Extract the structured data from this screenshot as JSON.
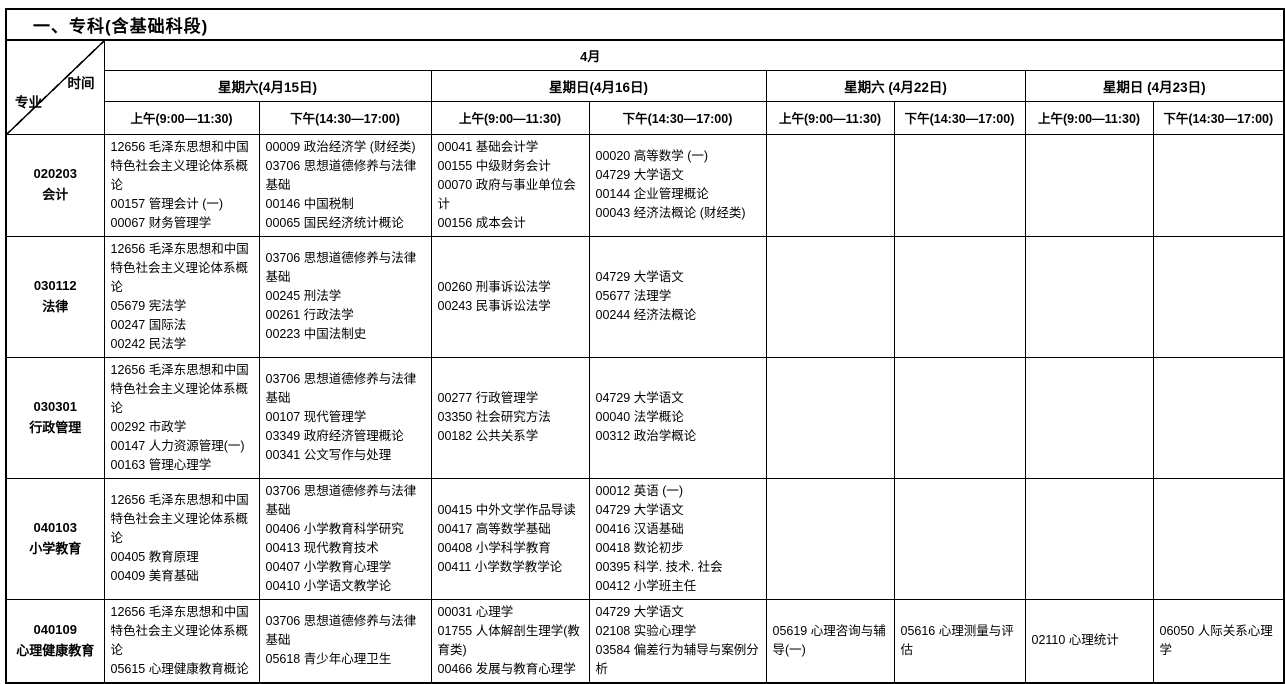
{
  "title": "一、专科(含基础科段)",
  "table": {
    "month": "4月",
    "corner": {
      "time": "时间",
      "major": "专业"
    },
    "days": [
      {
        "label": "星期六(4月15日)",
        "am": "上午(9:00—11:30)",
        "pm": "下午(14:30—17:00)"
      },
      {
        "label": "星期日(4月16日)",
        "am": "上午(9:00—11:30)",
        "pm": "下午(14:30—17:00)"
      },
      {
        "label": "星期六 (4月22日)",
        "am": "上午(9:00—11:30)",
        "pm": "下午(14:30—17:00)"
      },
      {
        "label": "星期日 (4月23日)",
        "am": "上午(9:00—11:30)",
        "pm": "下午(14:30—17:00)"
      }
    ],
    "rows": [
      {
        "code": "020203",
        "major": "会计",
        "cells": [
          [
            "12656 毛泽东思想和中国特色社会主义理论体系概论",
            "00157 管理会计 (一)",
            "00067 财务管理学"
          ],
          [
            "00009 政治经济学 (财经类)",
            "03706 思想道德修养与法律基础",
            "00146 中国税制",
            "00065 国民经济统计概论"
          ],
          [
            "00041 基础会计学",
            "00155 中级财务会计",
            "00070 政府与事业单位会计",
            "00156 成本会计"
          ],
          [
            "00020 高等数学 (一)",
            "04729 大学语文",
            "00144 企业管理概论",
            "00043 经济法概论 (财经类)"
          ],
          [],
          [],
          [],
          []
        ]
      },
      {
        "code": "030112",
        "major": "法律",
        "cells": [
          [
            "12656 毛泽东思想和中国特色社会主义理论体系概论",
            "05679 宪法学",
            "00247 国际法",
            "00242 民法学"
          ],
          [
            "03706 思想道德修养与法律基础",
            "00245 刑法学",
            "00261 行政法学",
            "00223 中国法制史"
          ],
          [
            "00260 刑事诉讼法学",
            "00243 民事诉讼法学"
          ],
          [
            "04729 大学语文",
            "05677 法理学",
            "00244 经济法概论"
          ],
          [],
          [],
          [],
          []
        ]
      },
      {
        "code": "030301",
        "major": "行政管理",
        "cells": [
          [
            "12656 毛泽东思想和中国特色社会主义理论体系概论",
            "00292 市政学",
            "00147 人力资源管理(一)",
            "00163 管理心理学"
          ],
          [
            "03706 思想道德修养与法律基础",
            "00107 现代管理学",
            "03349 政府经济管理概论",
            "00341 公文写作与处理"
          ],
          [
            "00277 行政管理学",
            "03350 社会研究方法",
            "00182 公共关系学"
          ],
          [
            "04729 大学语文",
            "00040 法学概论",
            "00312 政治学概论"
          ],
          [],
          [],
          [],
          []
        ]
      },
      {
        "code": "040103",
        "major": "小学教育",
        "cells": [
          [
            "12656 毛泽东思想和中国特色社会主义理论体系概论",
            "00405 教育原理",
            "00409 美育基础"
          ],
          [
            "03706 思想道德修养与法律基础",
            "00406 小学教育科学研究",
            "00413 现代教育技术",
            "00407 小学教育心理学",
            "00410 小学语文教学论"
          ],
          [
            "00415 中外文学作品导读",
            "00417 高等数学基础",
            "00408 小学科学教育",
            "00411 小学数学教学论"
          ],
          [
            "00012 英语 (一)",
            "04729 大学语文",
            "00416 汉语基础",
            "00418 数论初步",
            "00395 科学. 技术. 社会",
            "00412 小学班主任"
          ],
          [],
          [],
          [],
          []
        ]
      },
      {
        "code": "040109",
        "major": "心理健康教育",
        "cells": [
          [
            "12656 毛泽东思想和中国特色社会主义理论体系概论",
            "05615 心理健康教育概论"
          ],
          [
            "03706 思想道德修养与法律基础",
            "05618 青少年心理卫生"
          ],
          [
            "00031 心理学",
            "01755 人体解剖生理学(教育类)",
            "00466 发展与教育心理学"
          ],
          [
            "04729 大学语文",
            "02108 实验心理学",
            "03584 偏差行为辅导与案例分析"
          ],
          [
            "05619 心理咨询与辅导(一)"
          ],
          [
            "05616 心理测量与评估"
          ],
          [
            "02110 心理统计"
          ],
          [
            "06050 人际关系心理学"
          ]
        ]
      }
    ]
  }
}
